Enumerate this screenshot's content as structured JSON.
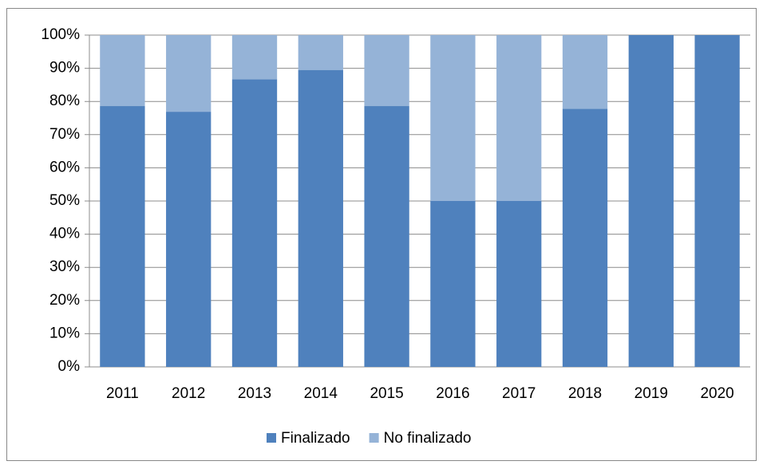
{
  "chart_data": {
    "type": "stacked_bar",
    "categories": [
      "2011",
      "2012",
      "2013",
      "2014",
      "2015",
      "2016",
      "2017",
      "2018",
      "2019",
      "2020"
    ],
    "series": [
      {
        "name": "Finalizado",
        "color": "#4f81bd",
        "values": [
          78.6,
          76.9,
          86.7,
          89.5,
          78.6,
          50,
          50,
          77.8,
          100,
          100
        ]
      },
      {
        "name": "No finalizado",
        "color": "#95b3d7",
        "values": [
          21.4,
          23.1,
          13.3,
          10.5,
          21.4,
          50,
          50,
          22.2,
          0,
          0
        ]
      }
    ],
    "ylim": [
      0,
      100
    ],
    "yticks": [
      {
        "value": 0,
        "label": "0%"
      },
      {
        "value": 10,
        "label": "10%"
      },
      {
        "value": 20,
        "label": "20%"
      },
      {
        "value": 30,
        "label": "30%"
      },
      {
        "value": 40,
        "label": "40%"
      },
      {
        "value": 50,
        "label": "50%"
      },
      {
        "value": 60,
        "label": "60%"
      },
      {
        "value": 70,
        "label": "70%"
      },
      {
        "value": 80,
        "label": "80%"
      },
      {
        "value": 90,
        "label": "90%"
      },
      {
        "value": 100,
        "label": "100%"
      }
    ],
    "grid": true,
    "legend": "bottom"
  }
}
